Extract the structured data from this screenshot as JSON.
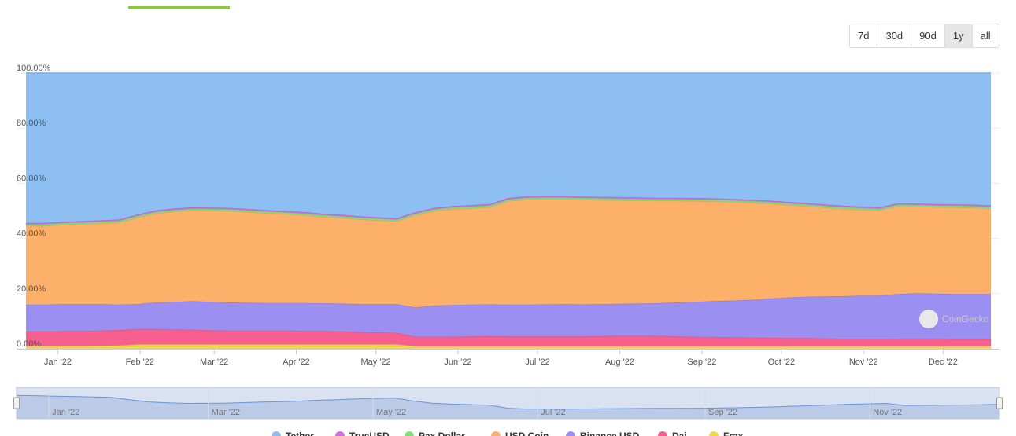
{
  "range_selector": {
    "options": [
      "7d",
      "30d",
      "90d",
      "1y",
      "all"
    ],
    "active": "1y"
  },
  "watermark": "CoinGecko",
  "chart_data": {
    "type": "area",
    "stacked": true,
    "stack_mode": "percent",
    "x": [
      "2021-12-20",
      "2021-12-27",
      "2022-01-03",
      "2022-01-10",
      "2022-01-17",
      "2022-01-24",
      "2022-01-31",
      "2022-02-07",
      "2022-02-14",
      "2022-02-21",
      "2022-02-28",
      "2022-03-07",
      "2022-03-14",
      "2022-03-21",
      "2022-03-28",
      "2022-04-04",
      "2022-04-11",
      "2022-04-18",
      "2022-04-25",
      "2022-05-02",
      "2022-05-09",
      "2022-05-16",
      "2022-05-23",
      "2022-05-30",
      "2022-06-06",
      "2022-06-13",
      "2022-06-20",
      "2022-06-27",
      "2022-07-04",
      "2022-07-11",
      "2022-07-18",
      "2022-07-25",
      "2022-08-01",
      "2022-08-08",
      "2022-08-15",
      "2022-08-22",
      "2022-08-29",
      "2022-09-05",
      "2022-09-12",
      "2022-09-19",
      "2022-09-26",
      "2022-10-03",
      "2022-10-10",
      "2022-10-17",
      "2022-10-24",
      "2022-10-31",
      "2022-11-07",
      "2022-11-14",
      "2022-11-21",
      "2022-11-28",
      "2022-12-05",
      "2022-12-12",
      "2022-12-19"
    ],
    "series": [
      {
        "name": "Frax",
        "color": "#f1d54a",
        "values": [
          1.0,
          1.0,
          1.0,
          1.0,
          1.1,
          1.2,
          1.6,
          1.6,
          1.6,
          1.6,
          1.6,
          1.6,
          1.6,
          1.6,
          1.6,
          1.6,
          1.6,
          1.6,
          1.6,
          1.6,
          1.6,
          0.9,
          0.9,
          0.9,
          0.9,
          0.9,
          0.9,
          0.9,
          0.9,
          0.9,
          0.9,
          0.9,
          0.9,
          0.9,
          0.9,
          0.9,
          0.9,
          0.9,
          0.9,
          0.9,
          0.9,
          0.9,
          0.9,
          0.9,
          0.9,
          0.9,
          0.9,
          0.9,
          0.9,
          0.9,
          0.9,
          0.9,
          0.9
        ]
      },
      {
        "name": "Dai",
        "color": "#f7608e",
        "values": [
          5.3,
          5.3,
          5.4,
          5.4,
          5.5,
          5.6,
          5.6,
          5.6,
          5.4,
          5.3,
          5.1,
          5.0,
          5.0,
          5.0,
          5.0,
          4.9,
          4.8,
          4.7,
          4.5,
          4.3,
          4.2,
          3.5,
          3.5,
          3.5,
          3.6,
          3.7,
          3.6,
          3.6,
          3.6,
          3.6,
          3.6,
          3.7,
          3.9,
          3.9,
          3.8,
          3.6,
          3.5,
          3.4,
          3.3,
          3.2,
          3.1,
          3.0,
          3.0,
          2.9,
          2.8,
          2.8,
          2.8,
          2.7,
          2.7,
          2.7,
          2.6,
          2.6,
          2.6
        ]
      },
      {
        "name": "Binance USD",
        "color": "#9b8ff1",
        "values": [
          9.7,
          9.7,
          9.8,
          9.8,
          9.6,
          9.2,
          9.0,
          9.6,
          10.0,
          10.4,
          10.3,
          10.2,
          10.1,
          10.0,
          10.0,
          10.1,
          10.1,
          10.1,
          10.1,
          10.3,
          10.4,
          10.6,
          11.3,
          11.5,
          11.5,
          11.5,
          11.5,
          11.5,
          11.6,
          11.7,
          11.6,
          11.6,
          11.5,
          11.6,
          11.8,
          12.3,
          12.6,
          13.0,
          13.3,
          13.6,
          14.2,
          14.7,
          15.0,
          15.2,
          15.4,
          15.6,
          15.6,
          16.3,
          16.6,
          16.4,
          16.4,
          16.4,
          16.4
        ]
      },
      {
        "name": "USD Coin",
        "color": "#fdb06a",
        "values": [
          28.5,
          28.6,
          28.8,
          29.0,
          29.3,
          29.8,
          31.4,
          32.3,
          32.8,
          32.9,
          33.1,
          33.2,
          32.9,
          32.6,
          32.3,
          31.9,
          31.4,
          31.1,
          30.8,
          30.4,
          30.1,
          33.5,
          34.3,
          34.8,
          35.0,
          35.3,
          37.6,
          38.2,
          38.2,
          38.1,
          38.0,
          37.8,
          37.6,
          37.4,
          37.2,
          36.9,
          36.6,
          36.2,
          35.8,
          35.3,
          34.5,
          33.6,
          32.9,
          32.3,
          31.7,
          31.2,
          30.9,
          31.8,
          31.4,
          31.4,
          31.4,
          31.3,
          31.0
        ]
      },
      {
        "name": "Pax Dollar",
        "color": "#7fe07a",
        "values": [
          0.6,
          0.6,
          0.6,
          0.6,
          0.6,
          0.6,
          0.6,
          0.6,
          0.6,
          0.6,
          0.6,
          0.6,
          0.6,
          0.6,
          0.6,
          0.6,
          0.6,
          0.6,
          0.6,
          0.6,
          0.6,
          0.6,
          0.6,
          0.6,
          0.6,
          0.6,
          0.6,
          0.6,
          0.6,
          0.6,
          0.6,
          0.6,
          0.6,
          0.6,
          0.6,
          0.6,
          0.6,
          0.6,
          0.6,
          0.6,
          0.6,
          0.6,
          0.6,
          0.6,
          0.6,
          0.6,
          0.6,
          0.6,
          0.6,
          0.6,
          0.6,
          0.6,
          0.6
        ]
      },
      {
        "name": "TrueUSD",
        "color": "#d06ee0",
        "values": [
          0.5,
          0.5,
          0.5,
          0.5,
          0.5,
          0.5,
          0.5,
          0.5,
          0.5,
          0.5,
          0.5,
          0.5,
          0.5,
          0.5,
          0.5,
          0.5,
          0.5,
          0.5,
          0.5,
          0.5,
          0.5,
          0.5,
          0.5,
          0.5,
          0.5,
          0.5,
          0.5,
          0.5,
          0.5,
          0.5,
          0.5,
          0.5,
          0.5,
          0.5,
          0.5,
          0.5,
          0.5,
          0.5,
          0.5,
          0.5,
          0.5,
          0.5,
          0.5,
          0.5,
          0.5,
          0.5,
          0.5,
          0.5,
          0.5,
          0.5,
          0.5,
          0.5,
          0.5
        ]
      },
      {
        "name": "Tether",
        "color": "#8dbff3",
        "values": [
          54.4,
          54.3,
          53.9,
          53.7,
          53.4,
          53.1,
          51.3,
          49.8,
          49.1,
          48.7,
          48.8,
          48.9,
          49.3,
          49.7,
          50.0,
          50.4,
          51.0,
          51.4,
          51.9,
          52.3,
          52.6,
          50.4,
          48.9,
          48.2,
          47.9,
          47.5,
          45.3,
          44.7,
          44.6,
          44.6,
          44.8,
          44.9,
          45.0,
          45.1,
          45.2,
          45.2,
          45.3,
          45.4,
          45.6,
          45.9,
          46.2,
          46.7,
          47.1,
          47.6,
          48.1,
          48.4,
          48.7,
          47.2,
          47.3,
          47.5,
          47.6,
          47.7,
          48.1
        ]
      }
    ],
    "y_ticks": [
      "0.00%",
      "20.00%",
      "40.00%",
      "60.00%",
      "80.00%",
      "100.00%"
    ],
    "ylim": [
      0,
      100
    ],
    "x_ticks": [
      {
        "date": "2022-01-01",
        "label": "Jan '22"
      },
      {
        "date": "2022-02-01",
        "label": "Feb '22"
      },
      {
        "date": "2022-03-01",
        "label": "Mar '22"
      },
      {
        "date": "2022-04-01",
        "label": "Apr '22"
      },
      {
        "date": "2022-05-01",
        "label": "May '22"
      },
      {
        "date": "2022-06-01",
        "label": "Jun '22"
      },
      {
        "date": "2022-07-01",
        "label": "Jul '22"
      },
      {
        "date": "2022-08-01",
        "label": "Aug '22"
      },
      {
        "date": "2022-09-01",
        "label": "Sep '22"
      },
      {
        "date": "2022-10-01",
        "label": "Oct '22"
      },
      {
        "date": "2022-11-01",
        "label": "Nov '22"
      },
      {
        "date": "2022-12-01",
        "label": "Dec '22"
      }
    ],
    "navigator_ticks": [
      {
        "date": "2022-01-01",
        "label": "Jan '22"
      },
      {
        "date": "2022-03-01",
        "label": "Mar '22"
      },
      {
        "date": "2022-05-01",
        "label": "May '22"
      },
      {
        "date": "2022-07-01",
        "label": "Jul '22"
      },
      {
        "date": "2022-09-01",
        "label": "Sep '22"
      },
      {
        "date": "2022-11-01",
        "label": "Nov '22"
      }
    ],
    "legend": [
      "Tether",
      "TrueUSD",
      "Pax Dollar",
      "USD Coin",
      "Binance USD",
      "Dai",
      "Frax"
    ],
    "legend_position": "bottom",
    "grid": true
  }
}
